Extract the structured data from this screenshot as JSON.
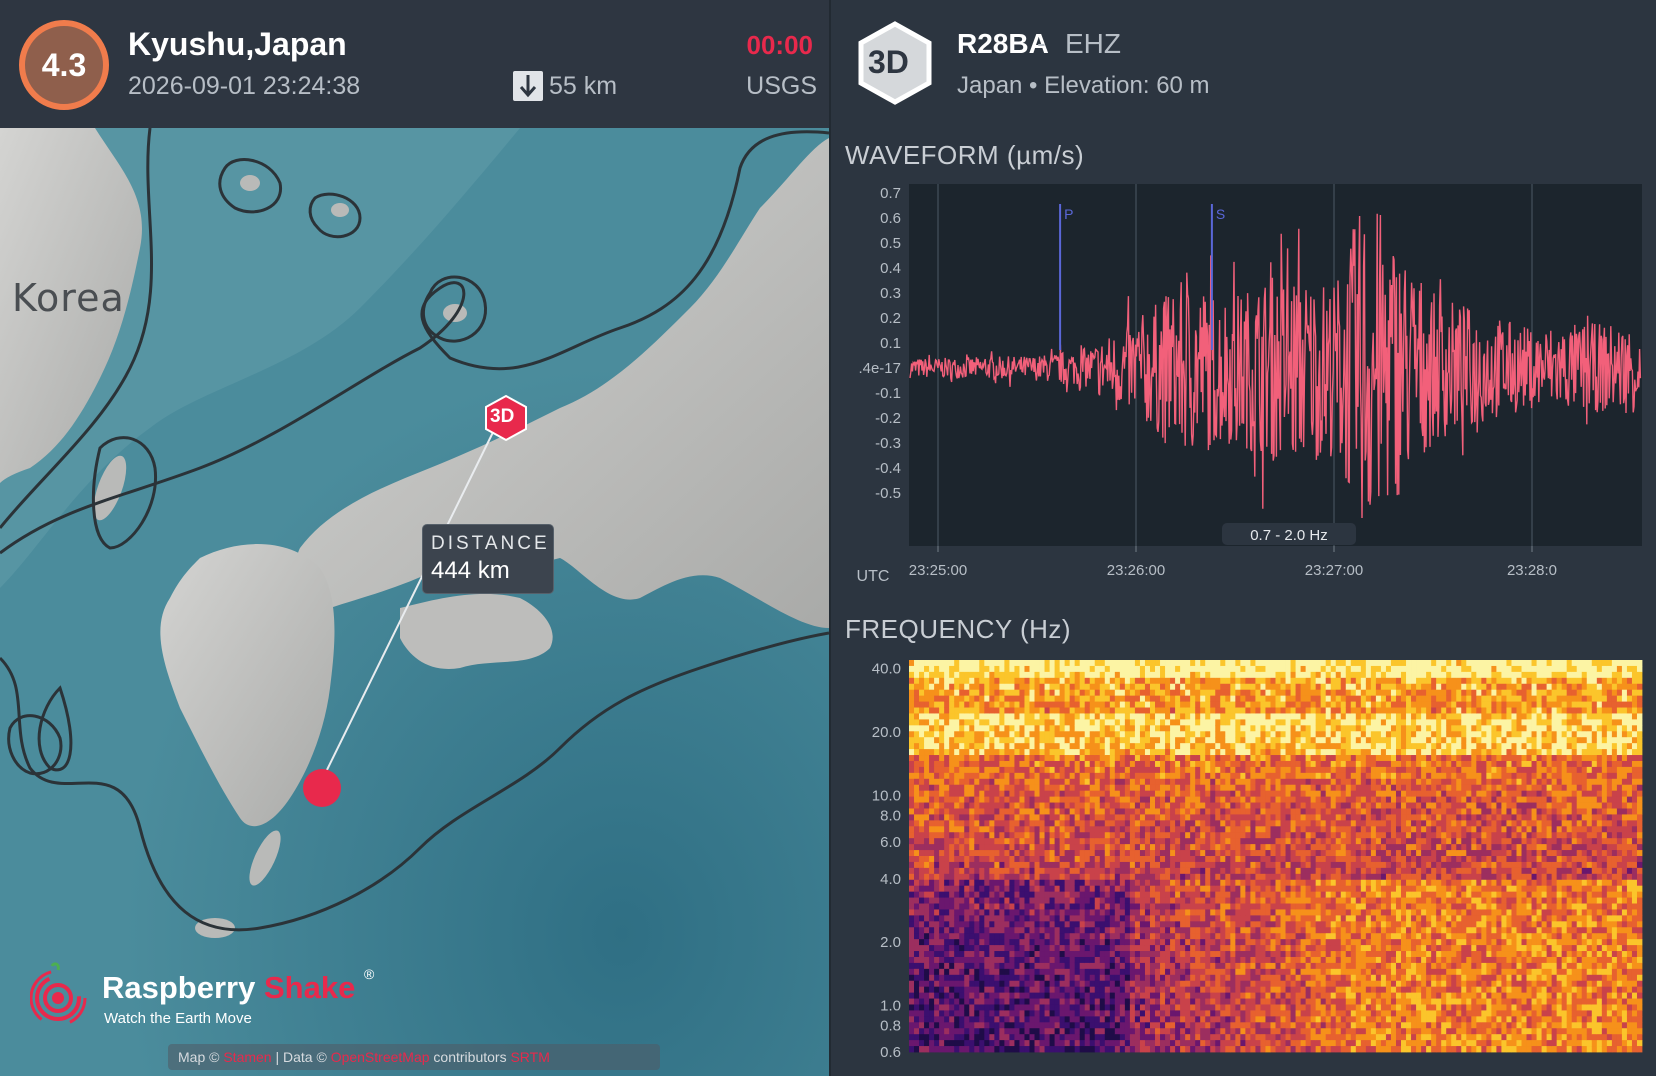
{
  "event": {
    "magnitude": "4.3",
    "location": "Kyushu,Japan",
    "datetime": "2026-09-01 23:24:38",
    "depth": "55 km",
    "elapsed": "00:00",
    "source": "USGS",
    "colors": {
      "badge_ring": "#f07c4c",
      "badge_fill": "#8f5f4c",
      "elapsed": "#e8294c"
    }
  },
  "map": {
    "region_label": "Korea",
    "distance_label": "DISTANCE",
    "distance_value": "444 km",
    "station_marker_label": "3D",
    "brand": {
      "name_a": "Raspberry",
      "name_b": "Shake",
      "reg": "®",
      "tagline": "Watch the Earth Move"
    },
    "attribution": {
      "map": "Map ©",
      "map_link": "Stamen",
      "data": "| Data ©",
      "data_link": "OpenStreetMap",
      "contributors": "contributors",
      "srtm": "SRTM"
    }
  },
  "station": {
    "badge": "3D",
    "code": "R28BA",
    "dash": "-",
    "channel": "EHZ",
    "meta": "Japan • Elevation: 60 m"
  },
  "waveform": {
    "title": "WAVEFORM (µm/s)",
    "filter": "0.7 - 2.0 Hz",
    "p_label": "P",
    "s_label": "S",
    "timezone": "UTC",
    "color": "#f2607a"
  },
  "frequency": {
    "title": "FREQUENCY (Hz)"
  },
  "chart_data": [
    {
      "type": "line",
      "title": "WAVEFORM (µm/s)",
      "ylabel": "µm/s",
      "xlabel": "UTC",
      "y_ticks": [
        "0.7",
        "0.6",
        "0.5",
        "0.4",
        "0.3",
        "0.2",
        "0.1",
        ".4e-17",
        "-0.1",
        "-0.2",
        "-0.3",
        "-0.4",
        "-0.5"
      ],
      "ylim": [
        -0.6,
        0.78
      ],
      "x_ticks": [
        "23:25:00",
        "23:26:00",
        "23:27:00",
        "23:28:0"
      ],
      "phase_markers": [
        {
          "name": "P",
          "time": "23:25:37"
        },
        {
          "name": "S",
          "time": "23:26:23"
        }
      ],
      "envelope": {
        "times": [
          "23:24:38",
          "23:25:00",
          "23:25:30",
          "23:25:45",
          "23:26:00",
          "23:26:15",
          "23:26:30",
          "23:26:45",
          "23:27:00",
          "23:27:10",
          "23:27:30",
          "23:28:00",
          "23:28:07"
        ],
        "amplitude": [
          0.04,
          0.04,
          0.05,
          0.08,
          0.2,
          0.36,
          0.3,
          0.4,
          0.35,
          0.72,
          0.3,
          0.16,
          0.18
        ]
      },
      "grid": true,
      "series": [
        {
          "name": "EHZ",
          "color": "#f2607a"
        }
      ]
    },
    {
      "type": "heatmap",
      "title": "FREQUENCY (Hz)",
      "y_ticks": [
        "40.0",
        "20.0",
        "10.0",
        "8.0",
        "6.0",
        "4.0",
        "2.0",
        "1.0",
        "0.8",
        "0.6"
      ],
      "y_scale": "log",
      "ylim": [
        0.6,
        45
      ]
    }
  ]
}
